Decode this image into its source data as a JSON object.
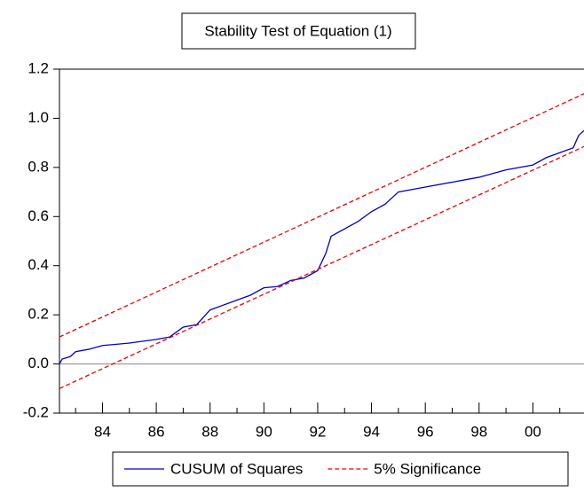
{
  "chart_data": {
    "type": "line",
    "title": "Stability Test of Equation (1)",
    "series": [
      {
        "name": "CUSUM of Squares",
        "color": "#0000cc",
        "dash": "solid",
        "x": [
          82.4,
          82.5,
          82.8,
          83.0,
          83.5,
          84,
          85,
          86,
          86.5,
          87,
          87.5,
          88,
          88.5,
          89,
          89.5,
          90,
          90.5,
          91,
          91.5,
          92,
          92.3,
          92.5,
          93,
          93.5,
          94,
          94.5,
          95,
          96,
          97,
          98,
          99,
          100,
          100.5,
          101,
          101.5,
          101.7,
          101.9
        ],
        "values": [
          0.0,
          0.02,
          0.03,
          0.05,
          0.06,
          0.075,
          0.085,
          0.1,
          0.11,
          0.15,
          0.16,
          0.22,
          0.24,
          0.26,
          0.28,
          0.31,
          0.315,
          0.34,
          0.35,
          0.38,
          0.45,
          0.52,
          0.55,
          0.58,
          0.62,
          0.65,
          0.7,
          0.72,
          0.74,
          0.76,
          0.79,
          0.81,
          0.84,
          0.86,
          0.88,
          0.93,
          0.95
        ]
      },
      {
        "name": "5% Significance",
        "color": "#ee0000",
        "dash": "dashed",
        "x": [
          82.4,
          101.9
        ],
        "values": [
          0.11,
          1.1
        ]
      },
      {
        "color": "#ee0000",
        "dash": "dashed",
        "x": [
          82.4,
          101.9
        ],
        "values": [
          -0.1,
          0.885
        ]
      }
    ],
    "xlim": [
      82.4,
      101.9
    ],
    "xticks": [
      84,
      86,
      88,
      90,
      92,
      94,
      96,
      98,
      {
        "value": 100,
        "label": "00"
      }
    ],
    "xticks_minor": [
      83,
      85,
      87,
      89,
      91,
      93,
      95,
      97,
      99,
      101
    ],
    "ylim": [
      -0.2,
      1.2
    ],
    "yticks": [
      -0.2,
      {
        "value": 0,
        "label": "0.0"
      },
      0.2,
      0.4,
      0.6,
      0.8,
      {
        "value": 1,
        "label": "1.0"
      },
      1.2
    ],
    "zero_line": true,
    "legend": "bottom"
  }
}
